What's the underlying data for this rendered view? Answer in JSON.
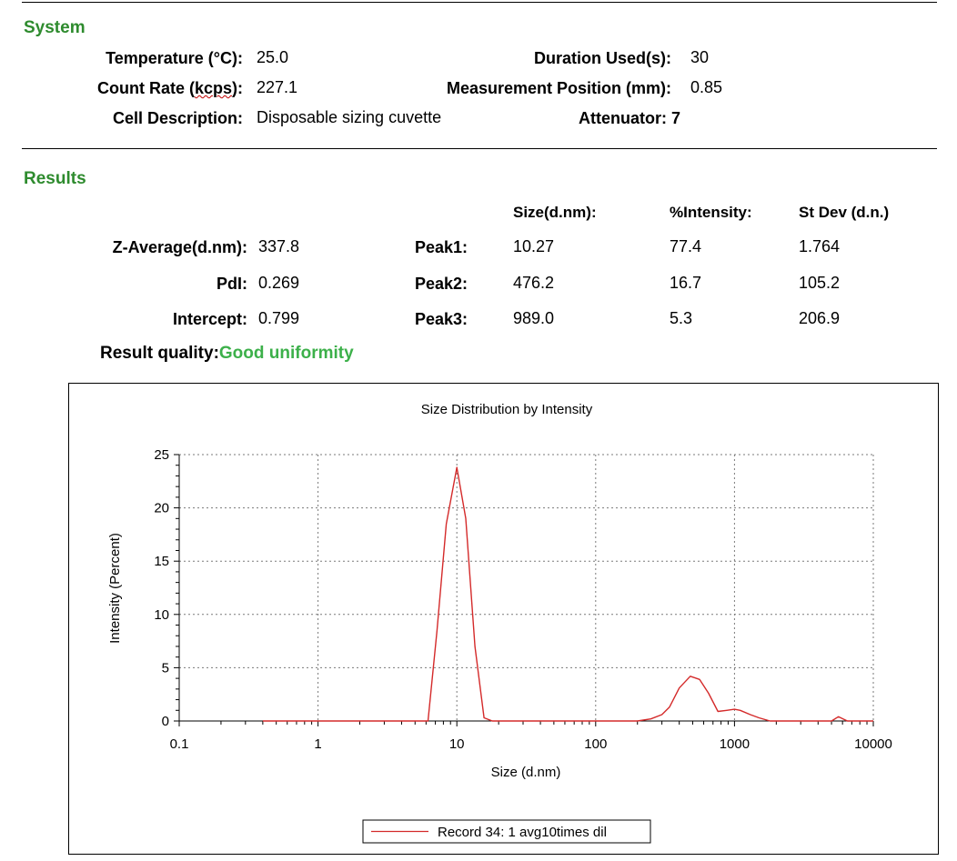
{
  "system": {
    "title": "System",
    "temperature_label": "Temperature (°C):",
    "temperature_value": "25.0",
    "count_rate_label_pre": "Count Rate (",
    "count_rate_label_unit": "kcps",
    "count_rate_label_post": "):",
    "count_rate_value": "227.1",
    "cell_label": "Cell Description:",
    "cell_value": "Disposable sizing cuvette",
    "duration_label": "Duration Used(s):",
    "duration_value": "30",
    "position_label": "Measurement Position (mm):",
    "position_value": "0.85",
    "attenuator_label": "Attenuator:",
    "attenuator_value": "7"
  },
  "results": {
    "title": "Results",
    "col_size": "Size(d.nm):",
    "col_intensity": "%Intensity:",
    "col_stdev": "St Dev (d.n.)",
    "zavg_label": "Z-Average(d.nm):",
    "zavg_value": "337.8",
    "pdi_label": "PdI:",
    "pdi_value": "0.269",
    "intercept_label": "Intercept:",
    "intercept_value": "0.799",
    "peaks": [
      {
        "label": "Peak1:",
        "size": "10.27",
        "intensity": "77.4",
        "stdev": "1.764"
      },
      {
        "label": "Peak2:",
        "size": "476.2",
        "intensity": "16.7",
        "stdev": "105.2"
      },
      {
        "label": "Peak3:",
        "size": "989.0",
        "intensity": "5.3",
        "stdev": "206.9"
      }
    ],
    "quality_label": "Result quality:",
    "quality_value": "Good uniformity"
  },
  "chart_data": {
    "type": "line",
    "title": "Size Distribution by Intensity",
    "xlabel": "Size (d.nm)",
    "ylabel": "Intensity (Percent)",
    "x_scale": "log",
    "xlim": [
      0.1,
      10000
    ],
    "ylim": [
      0,
      25
    ],
    "x_ticks": [
      0.1,
      1,
      10,
      100,
      1000,
      10000
    ],
    "x_tick_labels": [
      "0.1",
      "1",
      "10",
      "100",
      "1000",
      "10000"
    ],
    "y_ticks": [
      0,
      5,
      10,
      15,
      20,
      25
    ],
    "y_tick_labels": [
      "0",
      "5",
      "10",
      "15",
      "20",
      "25"
    ],
    "grid": true,
    "legend_position": "bottom",
    "line_color": "#d42a2a",
    "series": [
      {
        "name": "Record 34: 1 avg10times dil",
        "x": [
          0.4,
          1,
          3,
          6.2,
          7.2,
          8.4,
          10,
          11.6,
          13.5,
          15.7,
          18,
          50,
          200,
          250,
          300,
          340,
          400,
          480,
          560,
          650,
          760,
          880,
          1000,
          1100,
          1300,
          1500,
          1800,
          2500,
          5000,
          5600,
          6500,
          10000
        ],
        "y": [
          0,
          0,
          0,
          0,
          8.5,
          18.5,
          23.8,
          19,
          7,
          0.3,
          0,
          0,
          0,
          0.2,
          0.6,
          1.3,
          3.1,
          4.2,
          3.9,
          2.6,
          0.9,
          1.0,
          1.1,
          1.0,
          0.6,
          0.3,
          0,
          0,
          0,
          0.4,
          0,
          0
        ]
      }
    ]
  }
}
